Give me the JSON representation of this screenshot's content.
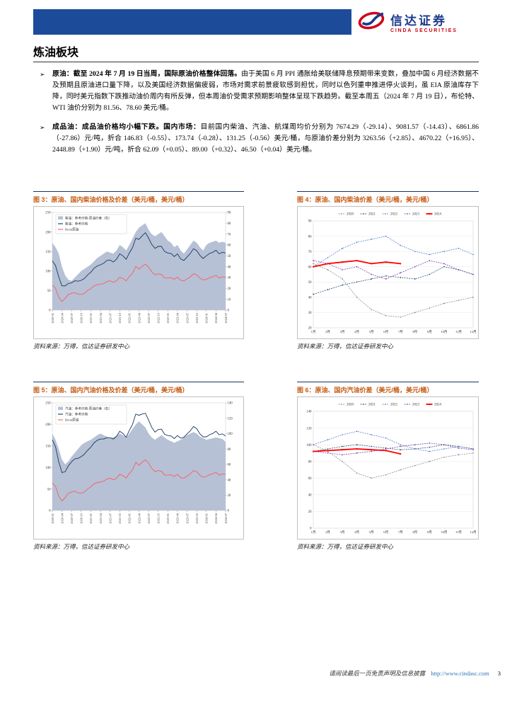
{
  "header": {
    "brand_cn": "信达证券",
    "brand_en": "CINDA SECURITIES",
    "bar_color": "#1c4b9a"
  },
  "page": {
    "title": "炼油板块",
    "footer_disclaimer": "请阅读最后一页免责声明及信息披露",
    "footer_url": "http://www.cindasc.com",
    "page_number": "3"
  },
  "bullets": [
    {
      "marker": "➢",
      "lead": "原油：截至 2024 年 7 月 19 日当周，国际原油价格整体回落。",
      "body": "由于美国 6 月 PPI 通胀给美联储降息预期带来变数，叠加中国 6 月经济数据不及预期且原油进口量下降，以及美国经济数据偏疲弱，市场对需求前景疲软感到担忧，同时以色列重申推进停火谈判，虽 EIA 原油库存下降，同时美元指数下跌推动油价周内有所反弹，但本周油价受需求预期影响整体呈现下跌趋势。截至本周五（2024 年 7 月 19 日），布伦特、WTI 油价分别为 81.56、78.60 美元/桶。"
    },
    {
      "marker": "➢",
      "lead": "成品油：成品油价格均小幅下跌。国内市场：",
      "body": "目前国内柴油、汽油、航煤周均价分别为 7674.29（-29.14）、9081.57（-14.43）、6861.86（-27.86）元/吨，折合 146.83（-0.55）、173.74（-0.28）、131.25（-0.56）美元/桶，与原油价差分别为 3263.56（+2.85）、4670.22（+16.95）、2448.89（+1.90）元/吨，折合 62.09（+0.05）、89.00（+0.32）、46.50（+0.04）美元/桶。"
    }
  ],
  "figures": [
    {
      "title": "图 3：原油、国内柴油价格及价差（美元/桶，美元/桶）",
      "source": "资料来源：万得，信达证券研发中心"
    },
    {
      "title": "图 4：原油、国内柴油价差（美元/桶，美元/桶）",
      "source": "资料来源：万得，信达证券研发中心"
    },
    {
      "title": "图 5：原油、国内汽油价格及价差（美元/桶，美元/桶）",
      "source": "资料来源：万得，信达证券研发中心"
    },
    {
      "title": "图 6：原油、国内汽油价差（美元/桶，美元/桶）",
      "source": "资料来源：万得，信达证券研发中心"
    }
  ],
  "chart_data": [
    {
      "id": "fig3",
      "type": "area_line",
      "title": "原油、国内柴油价格及价差（美元/桶，美元/桶）",
      "n_points": 55,
      "x_tick_step": 3,
      "x_ticks": [
        "2020-01",
        "2020-04",
        "2020-07",
        "2020-10",
        "2021-01",
        "2021-04",
        "2021-07",
        "2021-10",
        "2022-01",
        "2022-04",
        "2022-07",
        "2022-10",
        "2023-01",
        "2023-04",
        "2023-07",
        "2023-10",
        "2024-01",
        "2024-04",
        "2024-07"
      ],
      "ylim_left": [
        0,
        250
      ],
      "yticks_left": [
        0,
        50,
        100,
        150,
        200,
        250
      ],
      "ylim_right": [
        0,
        90
      ],
      "yticks_right": [
        0,
        10,
        20,
        30,
        40,
        50,
        60,
        70,
        80,
        90
      ],
      "area": {
        "name": "柴油：参考价格-原油价差（右）",
        "color": "#b6c1d6",
        "values": [
          62,
          58,
          52,
          40,
          32,
          28,
          27,
          30,
          33,
          36,
          38,
          40,
          42,
          45,
          48,
          50,
          52,
          54,
          53,
          52,
          55,
          60,
          58,
          55,
          60,
          66,
          72,
          76,
          78,
          80,
          74,
          70,
          68,
          70,
          72,
          68,
          64,
          62,
          58,
          60,
          55,
          52,
          56,
          60,
          64,
          62,
          58,
          55,
          60,
          62,
          63,
          64,
          62,
          63,
          62
        ]
      },
      "lines": [
        {
          "name": "柴油：参考价格",
          "color": "#17375e",
          "values": [
            126,
            114,
            85,
            62,
            62,
            68,
            70,
            75,
            74,
            76,
            81,
            90,
            97,
            107,
            113,
            116,
            120,
            127,
            128,
            123,
            130,
            144,
            139,
            130,
            146,
            160,
            184,
            181,
            190,
            198,
            184,
            168,
            158,
            163,
            163,
            150,
            146,
            145,
            137,
            144,
            131,
            127,
            136,
            145,
            157,
            152,
            140,
            132,
            139,
            145,
            148,
            153,
            144,
            148,
            146
          ]
        },
        {
          "name": "Brent原油",
          "color": "#ff5b5b",
          "values": [
            64,
            56,
            33,
            22,
            30,
            40,
            43,
            45,
            41,
            40,
            43,
            50,
            55,
            62,
            65,
            66,
            68,
            73,
            75,
            71,
            75,
            84,
            81,
            75,
            86,
            94,
            112,
            105,
            112,
            118,
            110,
            98,
            90,
            93,
            91,
            82,
            82,
            83,
            79,
            84,
            76,
            75,
            80,
            85,
            93,
            90,
            82,
            77,
            79,
            83,
            85,
            89,
            82,
            85,
            84
          ]
        }
      ]
    },
    {
      "id": "fig4",
      "type": "year_lines",
      "title": "原油、国内柴油价差（美元/桶，美元/桶）",
      "x": [
        "1月",
        "2月",
        "3月",
        "4月",
        "5月",
        "6月",
        "7月",
        "8月",
        "9月",
        "10月",
        "11月",
        "12月"
      ],
      "ylim": [
        20,
        90
      ],
      "yticks": [
        20,
        30,
        40,
        50,
        60,
        70,
        80,
        90
      ],
      "series": [
        {
          "name": "2020",
          "color": "#808080",
          "values": [
            62,
            58,
            52,
            40,
            32,
            28,
            27,
            30,
            33,
            36,
            38,
            40
          ]
        },
        {
          "name": "2021",
          "color": "#17375e",
          "values": [
            42,
            45,
            48,
            50,
            52,
            54,
            53,
            52,
            55,
            60,
            58,
            55
          ]
        },
        {
          "name": "2022",
          "color": "#4472c4",
          "values": [
            60,
            66,
            72,
            76,
            78,
            80,
            74,
            70,
            68,
            70,
            72,
            68
          ]
        },
        {
          "name": "2023",
          "color": "#7030a0",
          "values": [
            64,
            62,
            58,
            60,
            55,
            52,
            56,
            60,
            64,
            62,
            58,
            55
          ]
        },
        {
          "name": "2024",
          "color": "#ff0000",
          "emphasis": true,
          "values": [
            60,
            62,
            63,
            64,
            62,
            63,
            62
          ]
        }
      ]
    },
    {
      "id": "fig5",
      "type": "area_line",
      "title": "原油、国内汽油价格及价差（美元/桶，美元/桶）",
      "n_points": 55,
      "x_tick_step": 3,
      "x_ticks": [
        "2020-01",
        "2020-04",
        "2020-07",
        "2020-10",
        "2021-01",
        "2021-04",
        "2021-07",
        "2021-10",
        "2022-01",
        "2022-04",
        "2022-07",
        "2022-10",
        "2023-01",
        "2023-04",
        "2023-07",
        "2023-10",
        "2024-01",
        "2024-04",
        "2024-07"
      ],
      "ylim_left": [
        0,
        250
      ],
      "yticks_left": [
        0,
        50,
        100,
        150,
        200,
        250
      ],
      "ylim_right": [
        0,
        140
      ],
      "yticks_right": [
        0,
        20,
        40,
        60,
        80,
        100,
        120,
        140
      ],
      "area": {
        "name": "汽油：参考价格-原油价差（右）",
        "color": "#b6c1d6",
        "values": [
          100,
          92,
          80,
          66,
          60,
          64,
          70,
          75,
          80,
          85,
          88,
          90,
          92,
          95,
          98,
          100,
          98,
          96,
          94,
          95,
          97,
          100,
          98,
          95,
          100,
          106,
          112,
          116,
          112,
          108,
          100,
          95,
          92,
          95,
          98,
          95,
          92,
          90,
          88,
          90,
          92,
          95,
          98,
          100,
          102,
          100,
          96,
          94,
          92,
          93,
          94,
          95,
          94,
          93,
          89
        ]
      },
      "lines": [
        {
          "name": "汽油：参考价格",
          "color": "#17375e",
          "values": [
            164,
            148,
            113,
            88,
            90,
            104,
            113,
            120,
            121,
            125,
            131,
            140,
            147,
            157,
            163,
            166,
            166,
            169,
            169,
            166,
            172,
            184,
            179,
            170,
            186,
            200,
            224,
            221,
            224,
            226,
            210,
            193,
            182,
            188,
            189,
            177,
            174,
            173,
            167,
            174,
            168,
            170,
            178,
            185,
            195,
            190,
            178,
            171,
            171,
            176,
            179,
            184,
            176,
            178,
            173
          ]
        },
        {
          "name": "Brent原油",
          "color": "#ff5b5b",
          "values": [
            64,
            56,
            33,
            22,
            30,
            40,
            43,
            45,
            41,
            40,
            43,
            50,
            55,
            62,
            65,
            66,
            68,
            73,
            75,
            71,
            75,
            84,
            81,
            75,
            86,
            94,
            112,
            105,
            112,
            118,
            110,
            98,
            90,
            93,
            91,
            82,
            82,
            83,
            79,
            84,
            76,
            75,
            80,
            85,
            93,
            90,
            82,
            77,
            79,
            83,
            85,
            89,
            82,
            85,
            84
          ]
        }
      ]
    },
    {
      "id": "fig6",
      "type": "year_lines",
      "title": "原油、国内汽油价差（美元/桶，美元/桶）",
      "x": [
        "1月",
        "2月",
        "3月",
        "4月",
        "5月",
        "6月",
        "7月",
        "8月",
        "9月",
        "10月",
        "11月",
        "12月"
      ],
      "ylim": [
        0,
        140
      ],
      "yticks": [
        0,
        20,
        40,
        60,
        80,
        100,
        120,
        140
      ],
      "series": [
        {
          "name": "2020",
          "color": "#808080",
          "values": [
            100,
            92,
            80,
            66,
            60,
            64,
            70,
            75,
            80,
            85,
            88,
            90
          ]
        },
        {
          "name": "2021",
          "color": "#17375e",
          "values": [
            92,
            95,
            98,
            100,
            98,
            96,
            94,
            95,
            97,
            100,
            98,
            95
          ]
        },
        {
          "name": "2022",
          "color": "#4472c4",
          "values": [
            100,
            106,
            112,
            116,
            112,
            108,
            100,
            95,
            92,
            95,
            98,
            95
          ]
        },
        {
          "name": "2023",
          "color": "#7030a0",
          "values": [
            92,
            90,
            88,
            90,
            92,
            95,
            98,
            100,
            102,
            100,
            96,
            94
          ]
        },
        {
          "name": "2024",
          "color": "#ff0000",
          "emphasis": true,
          "values": [
            92,
            93,
            94,
            95,
            94,
            93,
            89
          ]
        }
      ]
    }
  ]
}
